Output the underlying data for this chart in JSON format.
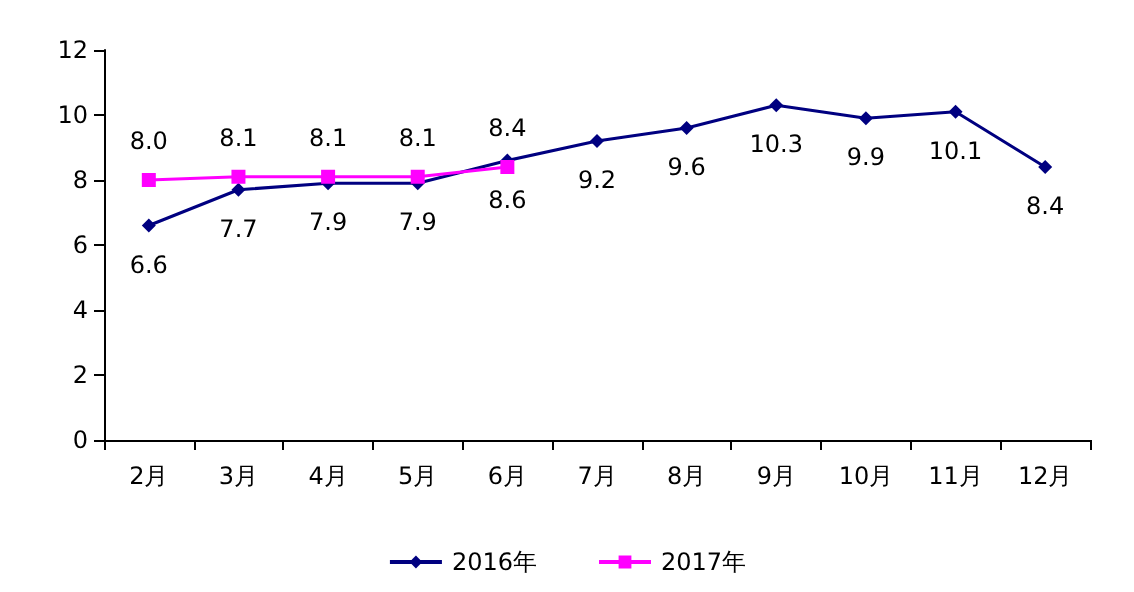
{
  "chart_data": {
    "type": "line",
    "categories": [
      "2月",
      "3月",
      "4月",
      "5月",
      "6月",
      "7月",
      "8月",
      "9月",
      "10月",
      "11月",
      "12月"
    ],
    "series": [
      {
        "name": "2016年",
        "color": "#000080",
        "marker": "diamond",
        "values": [
          6.6,
          7.7,
          7.9,
          7.9,
          8.6,
          9.2,
          9.6,
          10.3,
          9.9,
          10.1,
          8.4
        ],
        "value_labels": [
          "6.6",
          "7.7",
          "7.9",
          "7.9",
          "8.6",
          "9.2",
          "9.6",
          "10.3",
          "9.9",
          "10.1",
          "8.4"
        ]
      },
      {
        "name": "2017年",
        "color": "#ff00ff",
        "marker": "square",
        "values": [
          8.0,
          8.1,
          8.1,
          8.1,
          8.4,
          null,
          null,
          null,
          null,
          null,
          null
        ],
        "value_labels": [
          "8.0",
          "8.1",
          "8.1",
          "8.1",
          "8.4",
          null,
          null,
          null,
          null,
          null,
          null
        ]
      }
    ],
    "ylim": [
      0,
      12
    ],
    "yticks": [
      0,
      2,
      4,
      6,
      8,
      10,
      12
    ],
    "grid": false,
    "legend": "bottom"
  }
}
